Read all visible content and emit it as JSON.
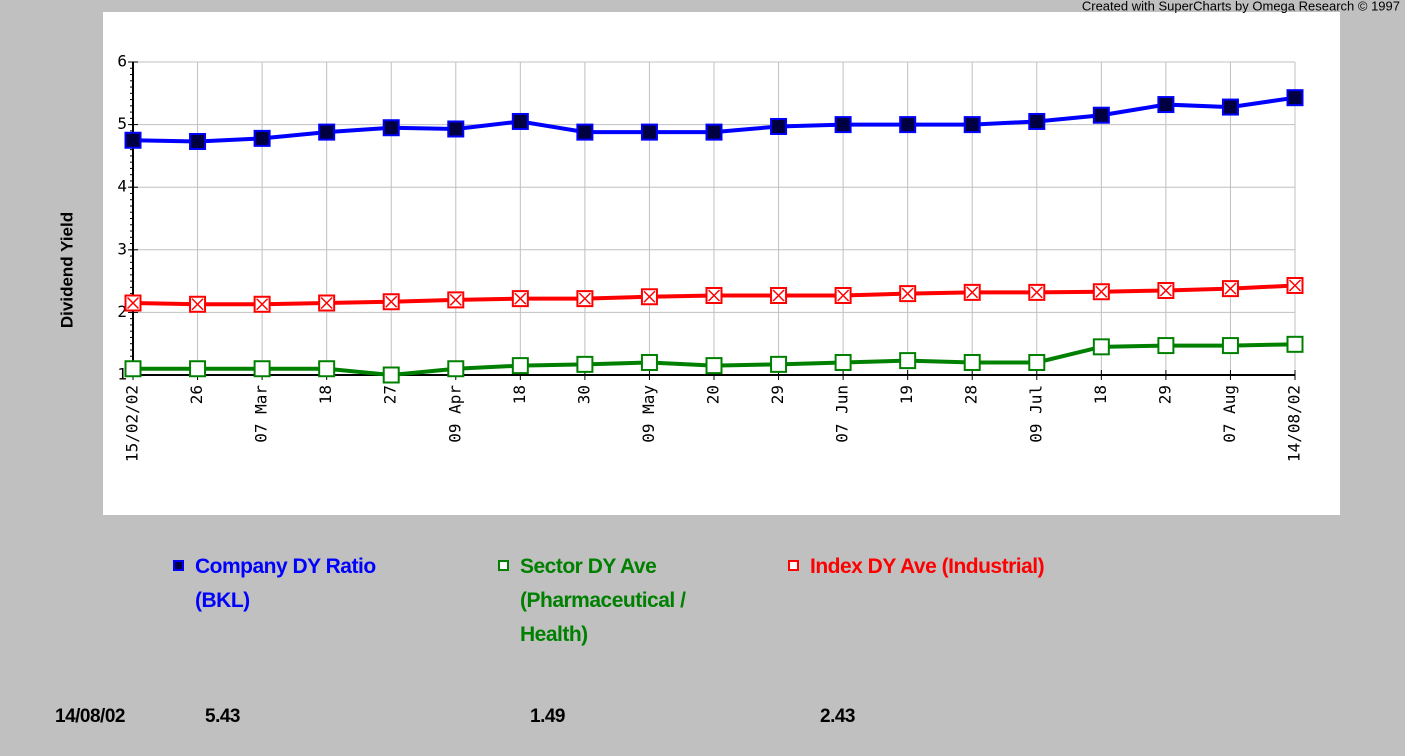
{
  "chart_data": {
    "type": "line",
    "credit": "Created with SuperCharts by Omega Research © 1997",
    "y_label": "Dividend Yield",
    "categories": [
      "15/02/02",
      "26",
      "07 Mar",
      "18",
      "27",
      "09 Apr",
      "18",
      "30",
      "09 May",
      "20",
      "29",
      "07 Jun",
      "19",
      "28",
      "09 Jul",
      "18",
      "29",
      "07 Aug",
      "14/08/02"
    ],
    "ylim": [
      1,
      6
    ],
    "yticks": [
      1,
      2,
      3,
      4,
      5,
      6
    ],
    "grid": true,
    "series": [
      {
        "name": "Company DY Ratio (BKL)",
        "color": "#0000ff",
        "marker": "filled",
        "values": [
          4.75,
          4.73,
          4.78,
          4.88,
          4.95,
          4.93,
          5.05,
          4.88,
          4.88,
          4.88,
          4.97,
          5.0,
          5.0,
          5.0,
          5.05,
          5.15,
          5.32,
          5.28,
          5.43
        ]
      },
      {
        "name": "Sector DY Ave (Pharmaceutical / Health)",
        "color": "#008000",
        "marker": "hollow",
        "values": [
          1.1,
          1.1,
          1.1,
          1.1,
          1.0,
          1.1,
          1.15,
          1.17,
          1.2,
          1.15,
          1.17,
          1.2,
          1.23,
          1.2,
          1.2,
          1.45,
          1.47,
          1.47,
          1.49
        ]
      },
      {
        "name": "Index DY Ave (Industrial)",
        "color": "#ff0000",
        "marker": "cross",
        "values": [
          2.15,
          2.13,
          2.13,
          2.15,
          2.17,
          2.2,
          2.22,
          2.22,
          2.25,
          2.27,
          2.27,
          2.27,
          2.3,
          2.32,
          2.32,
          2.33,
          2.35,
          2.38,
          2.43
        ]
      }
    ]
  }
}
